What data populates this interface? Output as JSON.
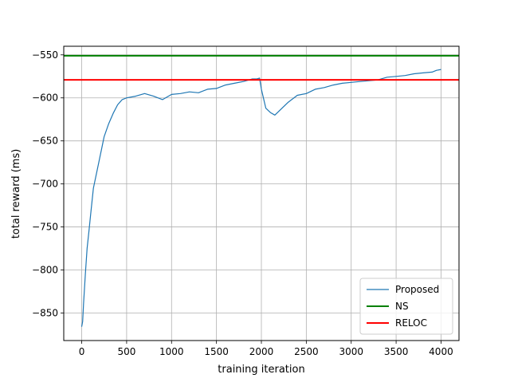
{
  "chart_data": {
    "type": "line",
    "xlabel": "training iteration",
    "ylabel": "total reward (ms)",
    "xlim": [
      -200,
      4200
    ],
    "ylim": [
      -882,
      -540
    ],
    "xticks": [
      0,
      500,
      1000,
      1500,
      2000,
      2500,
      3000,
      3500,
      4000
    ],
    "yticks": [
      -850,
      -800,
      -750,
      -700,
      -650,
      -600,
      -550
    ],
    "xtick_labels": [
      "0",
      "500",
      "1000",
      "1500",
      "2000",
      "2500",
      "3000",
      "3500",
      "4000"
    ],
    "ytick_labels": [
      "−850",
      "−800",
      "−750",
      "−700",
      "−650",
      "−600",
      "−550"
    ],
    "grid": true,
    "legend_position": "lower-right",
    "series": [
      {
        "name": "Proposed",
        "color": "#1f77b4",
        "x": [
          0,
          10,
          20,
          40,
          60,
          80,
          100,
          130,
          160,
          200,
          250,
          300,
          350,
          400,
          450,
          500,
          600,
          700,
          800,
          900,
          1000,
          1100,
          1200,
          1300,
          1400,
          1500,
          1600,
          1700,
          1800,
          1900,
          1950,
          1980,
          2000,
          2050,
          2100,
          2150,
          2200,
          2300,
          2400,
          2500,
          2600,
          2700,
          2800,
          2900,
          3000,
          3100,
          3200,
          3300,
          3400,
          3500,
          3600,
          3700,
          3800,
          3900,
          3950,
          4000
        ],
        "y": [
          -866,
          -860,
          -840,
          -805,
          -775,
          -755,
          -735,
          -705,
          -690,
          -670,
          -645,
          -630,
          -618,
          -608,
          -602,
          -600,
          -598,
          -595,
          -598,
          -602,
          -596,
          -595,
          -593,
          -594,
          -590,
          -589,
          -585,
          -583,
          -581,
          -578,
          -578,
          -577,
          -590,
          -612,
          -617,
          -620,
          -615,
          -605,
          -597,
          -595,
          -590,
          -588,
          -585,
          -583,
          -582,
          -581,
          -580,
          -579,
          -576,
          -575,
          -574,
          -572,
          -571,
          -570,
          -568,
          -567
        ]
      },
      {
        "name": "NS",
        "color": "#008000",
        "y_const": -551
      },
      {
        "name": "RELOC",
        "color": "#ff0000",
        "y_const": -579
      }
    ]
  }
}
